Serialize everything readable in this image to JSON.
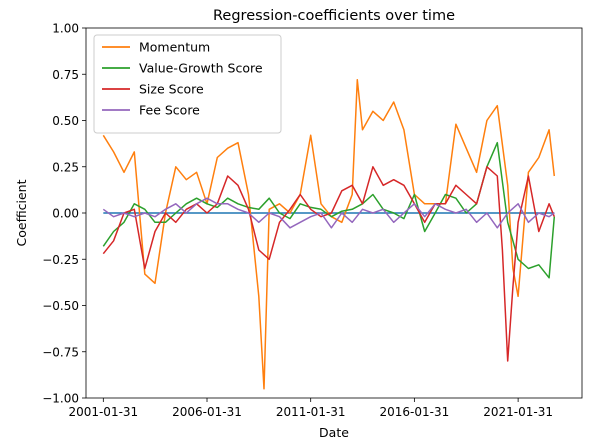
{
  "chart_data": {
    "type": "line",
    "title": "Regression-coefficients over time",
    "xlabel": "Date",
    "ylabel": "Coefficient",
    "xlim": [
      "2000-04-01",
      "2024-03-01"
    ],
    "ylim": [
      -1.0,
      1.0
    ],
    "x_ticks": [
      "2001-01-31",
      "2006-01-31",
      "2011-01-31",
      "2016-01-31",
      "2021-01-31"
    ],
    "y_ticks": [
      -1.0,
      -0.75,
      -0.5,
      -0.25,
      0.0,
      0.25,
      0.5,
      0.75,
      1.0
    ],
    "y_tick_labels": [
      "−1.00",
      "−0.75",
      "−0.50",
      "−0.25",
      "0.00",
      "0.25",
      "0.50",
      "0.75",
      "1.00"
    ],
    "grid": false,
    "legend_position": "top-left",
    "zero_line": {
      "x": [
        "2001-01-31",
        "2022-10-31"
      ],
      "y": [
        0,
        0
      ],
      "color": "#1f77b4"
    },
    "series": [
      {
        "name": "Momentum",
        "color": "#ff7f0e",
        "x": [
          "2001-01-31",
          "2001-07-31",
          "2002-01-31",
          "2002-07-31",
          "2003-01-31",
          "2003-07-31",
          "2004-01-31",
          "2004-07-31",
          "2005-01-31",
          "2005-07-31",
          "2006-01-31",
          "2006-07-31",
          "2007-01-31",
          "2007-07-31",
          "2008-01-31",
          "2008-07-31",
          "2008-10-31",
          "2009-01-31",
          "2009-07-31",
          "2010-01-31",
          "2010-07-31",
          "2011-01-31",
          "2011-07-31",
          "2012-01-31",
          "2012-07-31",
          "2013-01-31",
          "2013-04-30",
          "2013-07-31",
          "2014-01-31",
          "2014-07-31",
          "2015-01-31",
          "2015-07-31",
          "2016-01-31",
          "2016-07-31",
          "2017-01-31",
          "2017-07-31",
          "2018-01-31",
          "2018-07-31",
          "2019-01-31",
          "2019-07-31",
          "2020-01-31",
          "2020-07-31",
          "2020-10-31",
          "2021-01-31",
          "2021-07-31",
          "2022-01-31",
          "2022-07-31",
          "2022-10-31"
        ],
        "y": [
          0.42,
          0.33,
          0.22,
          0.33,
          -0.33,
          -0.38,
          0.0,
          0.25,
          0.18,
          0.22,
          0.05,
          0.3,
          0.35,
          0.38,
          0.1,
          -0.45,
          -0.95,
          0.02,
          0.05,
          0.0,
          0.1,
          0.42,
          0.05,
          -0.02,
          -0.05,
          0.1,
          0.72,
          0.45,
          0.55,
          0.5,
          0.6,
          0.45,
          0.1,
          0.05,
          0.05,
          0.05,
          0.48,
          0.35,
          0.22,
          0.5,
          0.58,
          0.15,
          -0.3,
          -0.45,
          0.22,
          0.3,
          0.45,
          0.2
        ]
      },
      {
        "name": "Value-Growth Score",
        "color": "#2ca02c",
        "x": [
          "2001-01-31",
          "2001-07-31",
          "2002-01-31",
          "2002-07-31",
          "2003-01-31",
          "2003-07-31",
          "2004-01-31",
          "2004-07-31",
          "2005-01-31",
          "2005-07-31",
          "2006-01-31",
          "2006-07-31",
          "2007-01-31",
          "2007-07-31",
          "2008-01-31",
          "2008-07-31",
          "2009-01-31",
          "2009-07-31",
          "2010-01-31",
          "2010-07-31",
          "2011-01-31",
          "2011-07-31",
          "2012-01-31",
          "2012-07-31",
          "2013-01-31",
          "2013-07-31",
          "2014-01-31",
          "2014-07-31",
          "2015-01-31",
          "2015-07-31",
          "2016-01-31",
          "2016-07-31",
          "2017-01-31",
          "2017-07-31",
          "2018-01-31",
          "2018-07-31",
          "2019-01-31",
          "2019-07-31",
          "2020-01-31",
          "2020-07-31",
          "2021-01-31",
          "2021-07-31",
          "2022-01-31",
          "2022-07-31",
          "2022-10-31"
        ],
        "y": [
          -0.18,
          -0.1,
          -0.05,
          0.05,
          0.02,
          -0.05,
          -0.05,
          0.0,
          0.05,
          0.08,
          0.05,
          0.03,
          0.08,
          0.05,
          0.03,
          0.02,
          0.08,
          0.0,
          -0.03,
          0.05,
          0.03,
          0.02,
          -0.02,
          0.01,
          0.02,
          0.05,
          0.1,
          0.02,
          0.0,
          -0.03,
          0.1,
          -0.1,
          0.0,
          0.1,
          0.08,
          0.0,
          0.05,
          0.25,
          0.38,
          -0.05,
          -0.25,
          -0.3,
          -0.28,
          -0.35,
          -0.02
        ]
      },
      {
        "name": "Size Score",
        "color": "#d62728",
        "x": [
          "2001-01-31",
          "2001-07-31",
          "2002-01-31",
          "2002-07-31",
          "2003-01-31",
          "2003-07-31",
          "2004-01-31",
          "2004-07-31",
          "2005-01-31",
          "2005-07-31",
          "2006-01-31",
          "2006-07-31",
          "2007-01-31",
          "2007-07-31",
          "2008-01-31",
          "2008-07-31",
          "2009-01-31",
          "2009-07-31",
          "2010-01-31",
          "2010-07-31",
          "2011-01-31",
          "2011-07-31",
          "2012-01-31",
          "2012-07-31",
          "2013-01-31",
          "2013-07-31",
          "2014-01-31",
          "2014-07-31",
          "2015-01-31",
          "2015-07-31",
          "2016-01-31",
          "2016-07-31",
          "2017-01-31",
          "2017-07-31",
          "2018-01-31",
          "2018-07-31",
          "2019-01-31",
          "2019-07-31",
          "2020-01-31",
          "2020-04-30",
          "2020-07-31",
          "2020-10-31",
          "2021-01-31",
          "2021-07-31",
          "2022-01-31",
          "2022-07-31",
          "2022-10-31"
        ],
        "y": [
          -0.22,
          -0.15,
          0.0,
          0.02,
          -0.3,
          -0.1,
          0.0,
          -0.05,
          0.02,
          0.05,
          0.0,
          0.05,
          0.2,
          0.15,
          0.02,
          -0.2,
          -0.25,
          -0.05,
          0.02,
          0.1,
          0.02,
          -0.02,
          0.0,
          0.12,
          0.15,
          0.05,
          0.25,
          0.15,
          0.18,
          0.15,
          0.05,
          -0.05,
          0.05,
          0.05,
          0.15,
          0.1,
          0.05,
          0.25,
          0.2,
          -0.2,
          -0.8,
          -0.4,
          -0.05,
          0.2,
          -0.1,
          0.05,
          -0.02
        ]
      },
      {
        "name": "Fee Score",
        "color": "#9467bd",
        "x": [
          "2001-01-31",
          "2001-07-31",
          "2002-01-31",
          "2002-07-31",
          "2003-01-31",
          "2003-07-31",
          "2004-01-31",
          "2004-07-31",
          "2005-01-31",
          "2005-07-31",
          "2006-01-31",
          "2006-07-31",
          "2007-01-31",
          "2007-07-31",
          "2008-01-31",
          "2008-07-31",
          "2009-01-31",
          "2009-07-31",
          "2010-01-31",
          "2010-07-31",
          "2011-01-31",
          "2011-07-31",
          "2012-01-31",
          "2012-07-31",
          "2013-01-31",
          "2013-07-31",
          "2014-01-31",
          "2014-07-31",
          "2015-01-31",
          "2015-07-31",
          "2016-01-31",
          "2016-07-31",
          "2017-01-31",
          "2017-07-31",
          "2018-01-31",
          "2018-07-31",
          "2019-01-31",
          "2019-07-31",
          "2020-01-31",
          "2020-07-31",
          "2021-01-31",
          "2021-07-31",
          "2022-01-31",
          "2022-07-31",
          "2022-10-31"
        ],
        "y": [
          0.02,
          -0.02,
          0.0,
          -0.02,
          0.0,
          -0.02,
          0.02,
          0.05,
          0.0,
          0.05,
          0.08,
          0.05,
          0.05,
          0.02,
          0.0,
          -0.05,
          0.0,
          -0.02,
          -0.08,
          -0.05,
          -0.02,
          0.0,
          -0.08,
          0.0,
          -0.05,
          0.02,
          0.0,
          0.02,
          -0.05,
          0.0,
          0.05,
          -0.02,
          0.05,
          0.02,
          0.0,
          0.02,
          -0.05,
          0.0,
          -0.08,
          0.0,
          0.05,
          -0.05,
          0.0,
          -0.02,
          0.0
        ]
      }
    ]
  }
}
